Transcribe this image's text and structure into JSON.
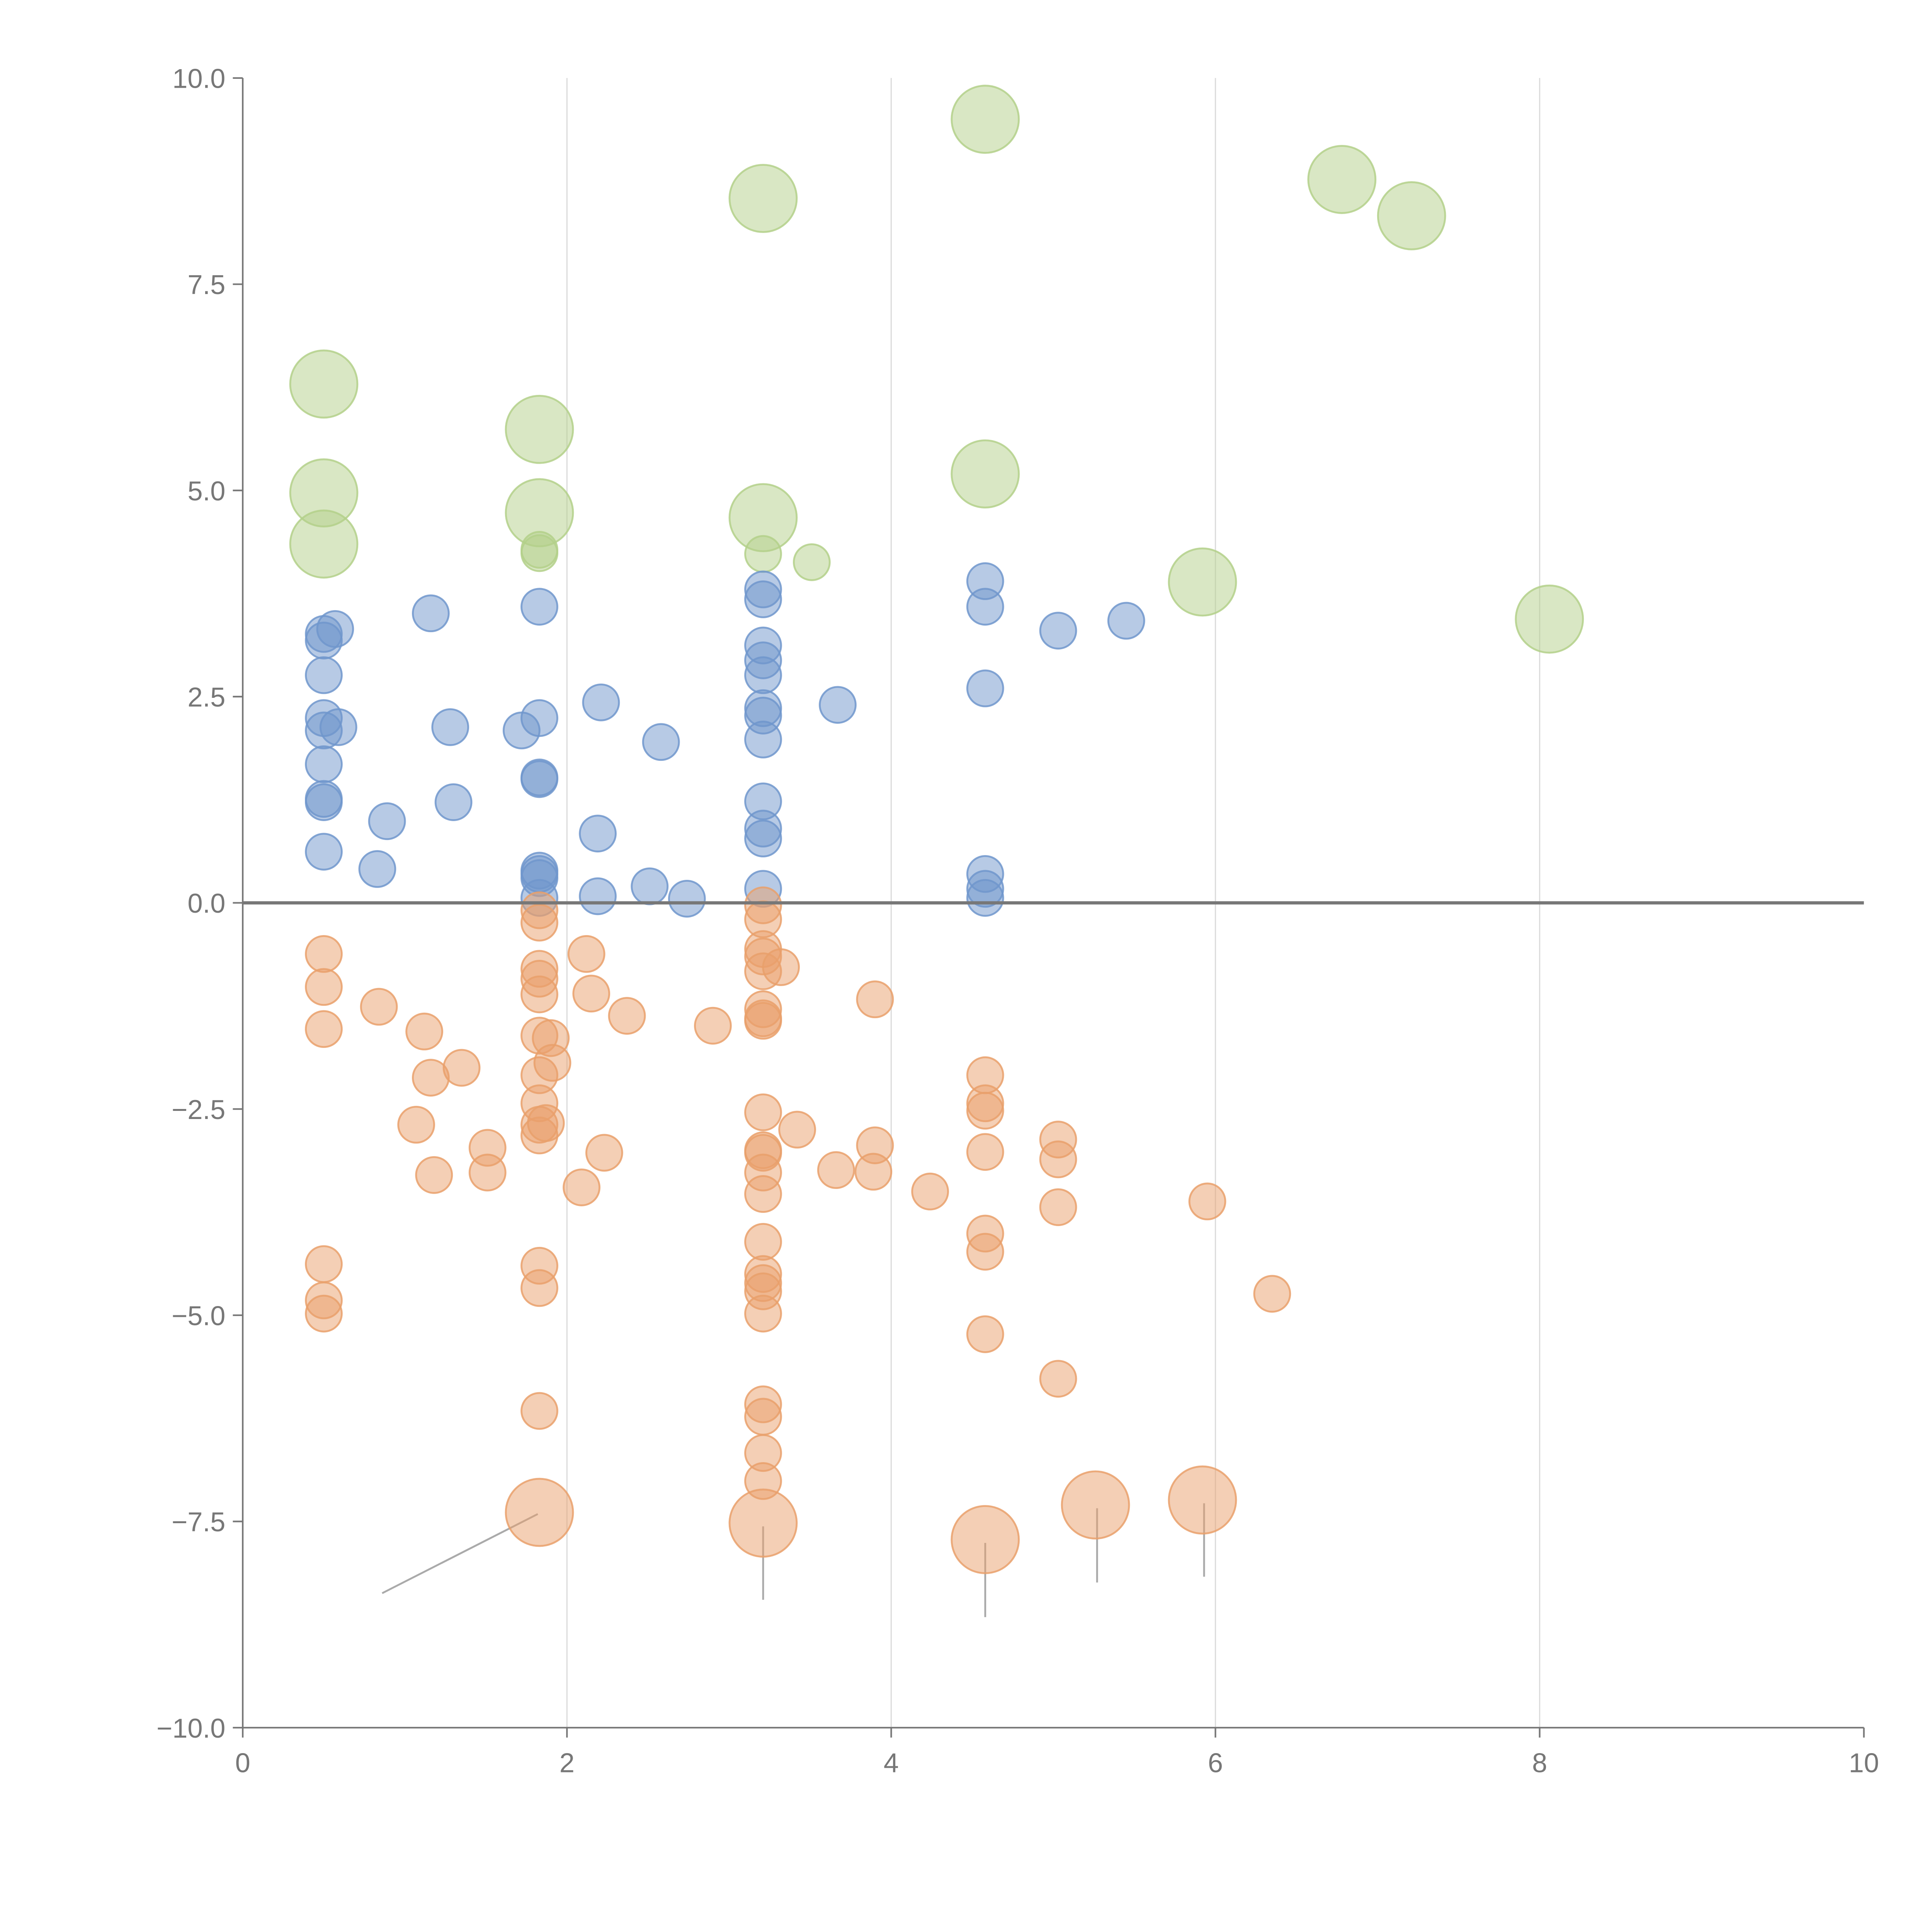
{
  "chart_data": {
    "type": "scatter",
    "title": "",
    "xlabel": "",
    "ylabel": "",
    "xlim": [
      0,
      10
    ],
    "ylim": [
      -10,
      10
    ],
    "grid": "vertical",
    "x_ticks": [
      "0",
      "2",
      "4",
      "6",
      "8",
      "10"
    ],
    "x_tick_values": [
      0,
      2,
      4,
      6,
      8,
      10
    ],
    "y_ticks": [
      "10.0",
      "7.5",
      "5.0",
      "2.5",
      "0.0",
      "−2.5",
      "−5.0",
      "−7.5",
      "−10.0"
    ],
    "y_tick_values": [
      10,
      7.5,
      5,
      2.5,
      0,
      -2.5,
      -5,
      -7.5,
      -10
    ],
    "reference_line_y": 0,
    "series": [
      {
        "name": "green",
        "color": "#b3d08a",
        "points": [
          [
            0.5,
            6.29,
            3.5
          ],
          [
            0.5,
            4.97,
            3.5
          ],
          [
            0.5,
            4.35,
            3.5
          ],
          [
            1.83,
            5.74,
            3.5
          ],
          [
            1.83,
            4.73,
            3.5
          ],
          [
            3.21,
            8.54,
            3.5
          ],
          [
            3.21,
            4.67,
            3.5
          ],
          [
            4.58,
            9.5,
            3.5
          ],
          [
            4.58,
            5.2,
            3.5
          ],
          [
            6.78,
            8.77,
            3.5
          ],
          [
            7.21,
            8.33,
            3.5
          ],
          [
            5.92,
            3.89,
            3.5
          ],
          [
            8.06,
            3.44,
            3.5
          ],
          [
            1.83,
            4.28,
            1
          ],
          [
            1.83,
            4.24,
            1
          ],
          [
            3.21,
            4.23,
            1
          ],
          [
            3.51,
            4.13,
            1
          ]
        ]
      },
      {
        "name": "blue",
        "color": "#7096cc",
        "points": [
          [
            0.5,
            3.26,
            1
          ],
          [
            0.5,
            3.18,
            1
          ],
          [
            0.5,
            2.76,
            1
          ],
          [
            0.5,
            2.24,
            1
          ],
          [
            0.5,
            2.09,
            1
          ],
          [
            0.5,
            1.68,
            1
          ],
          [
            0.5,
            1.26,
            1
          ],
          [
            0.5,
            1.22,
            1
          ],
          [
            0.5,
            0.62,
            1
          ],
          [
            0.57,
            3.32,
            1
          ],
          [
            0.59,
            2.13,
            1
          ],
          [
            1.16,
            3.51,
            1
          ],
          [
            1.28,
            2.13,
            1
          ],
          [
            1.3,
            1.22,
            1
          ],
          [
            0.89,
            0.99,
            1
          ],
          [
            0.83,
            0.41,
            1
          ],
          [
            1.83,
            3.59,
            1
          ],
          [
            1.83,
            2.24,
            1
          ],
          [
            1.83,
            1.52,
            1
          ],
          [
            1.83,
            1.5,
            1
          ],
          [
            1.83,
            0.39,
            1
          ],
          [
            1.83,
            0.35,
            1
          ],
          [
            1.83,
            0.3,
            1
          ],
          [
            1.83,
            0.06,
            1
          ],
          [
            1.72,
            2.09,
            1
          ],
          [
            2.21,
            2.43,
            1
          ],
          [
            2.19,
            0.84,
            1
          ],
          [
            2.19,
            0.08,
            1
          ],
          [
            2.58,
            1.95,
            1
          ],
          [
            2.51,
            0.2,
            1
          ],
          [
            2.74,
            0.05,
            1
          ],
          [
            3.21,
            3.8,
            1
          ],
          [
            3.21,
            3.68,
            1
          ],
          [
            3.21,
            3.12,
            1
          ],
          [
            3.21,
            2.94,
            1
          ],
          [
            3.21,
            2.76,
            1
          ],
          [
            3.21,
            2.36,
            1
          ],
          [
            3.21,
            2.27,
            1
          ],
          [
            3.21,
            1.98,
            1
          ],
          [
            3.21,
            1.23,
            1
          ],
          [
            3.21,
            0.9,
            1
          ],
          [
            3.21,
            0.78,
            1
          ],
          [
            3.21,
            0.17,
            1
          ],
          [
            3.67,
            2.4,
            1
          ],
          [
            4.58,
            3.9,
            1
          ],
          [
            4.58,
            3.59,
            1
          ],
          [
            4.58,
            2.6,
            1
          ],
          [
            4.58,
            0.35,
            1
          ],
          [
            4.58,
            0.17,
            1
          ],
          [
            4.58,
            0.06,
            1
          ],
          [
            5.03,
            3.3,
            1
          ],
          [
            5.45,
            3.42,
            1
          ]
        ]
      },
      {
        "name": "orange",
        "color": "#e9a06b",
        "points": [
          [
            0.5,
            -0.62,
            1
          ],
          [
            0.5,
            -1.02,
            1
          ],
          [
            0.5,
            -1.53,
            1
          ],
          [
            0.5,
            -4.38,
            1
          ],
          [
            0.5,
            -4.82,
            1
          ],
          [
            0.5,
            -4.98,
            1
          ],
          [
            0.84,
            -1.26,
            1
          ],
          [
            1.12,
            -1.56,
            1
          ],
          [
            1.16,
            -2.12,
            1
          ],
          [
            1.35,
            -2.0,
            1
          ],
          [
            1.07,
            -2.69,
            1
          ],
          [
            1.18,
            -3.3,
            1
          ],
          [
            1.51,
            -2.97,
            1
          ],
          [
            1.51,
            -3.27,
            1
          ],
          [
            1.83,
            -0.09,
            1
          ],
          [
            1.83,
            -0.24,
            1
          ],
          [
            1.83,
            -0.8,
            1
          ],
          [
            1.83,
            -0.92,
            1
          ],
          [
            1.83,
            -1.11,
            1
          ],
          [
            1.83,
            -1.61,
            1
          ],
          [
            1.83,
            -2.09,
            1
          ],
          [
            1.83,
            -2.43,
            1
          ],
          [
            1.83,
            -2.69,
            1
          ],
          [
            1.83,
            -2.82,
            1
          ],
          [
            1.83,
            -4.4,
            1
          ],
          [
            1.83,
            -4.67,
            1
          ],
          [
            1.83,
            -6.16,
            1
          ],
          [
            1.9,
            -1.64,
            1
          ],
          [
            1.91,
            -1.94,
            1
          ],
          [
            1.87,
            -2.67,
            1
          ],
          [
            2.12,
            -0.62,
            1
          ],
          [
            2.15,
            -1.1,
            1
          ],
          [
            2.37,
            -1.37,
            1
          ],
          [
            2.23,
            -3.03,
            1
          ],
          [
            2.09,
            -3.45,
            1
          ],
          [
            2.9,
            -1.49,
            1
          ],
          [
            3.21,
            -0.03,
            1
          ],
          [
            3.21,
            -0.2,
            1
          ],
          [
            3.21,
            -0.56,
            1
          ],
          [
            3.21,
            -0.65,
            1
          ],
          [
            3.21,
            -0.83,
            1
          ],
          [
            3.21,
            -1.29,
            1
          ],
          [
            3.21,
            -1.4,
            1
          ],
          [
            3.21,
            -1.43,
            1
          ],
          [
            3.21,
            -2.54,
            1
          ],
          [
            3.21,
            -3.0,
            1
          ],
          [
            3.21,
            -3.03,
            1
          ],
          [
            3.21,
            -3.27,
            1
          ],
          [
            3.21,
            -3.53,
            1
          ],
          [
            3.21,
            -4.11,
            1
          ],
          [
            3.21,
            -4.5,
            1
          ],
          [
            3.21,
            -4.61,
            1
          ],
          [
            3.21,
            -4.71,
            1
          ],
          [
            3.21,
            -4.98,
            1
          ],
          [
            3.21,
            -6.08,
            1
          ],
          [
            3.21,
            -6.23,
            1
          ],
          [
            3.21,
            -6.67,
            1
          ],
          [
            3.21,
            -7.01,
            1
          ],
          [
            3.32,
            -0.78,
            1
          ],
          [
            3.42,
            -2.75,
            1
          ],
          [
            3.66,
            -3.24,
            1
          ],
          [
            3.9,
            -1.17,
            1
          ],
          [
            3.9,
            -2.94,
            1
          ],
          [
            3.89,
            -3.26,
            1
          ],
          [
            4.24,
            -3.5,
            1
          ],
          [
            4.58,
            -2.09,
            1
          ],
          [
            4.58,
            -2.43,
            1
          ],
          [
            4.58,
            -2.52,
            1
          ],
          [
            4.58,
            -3.02,
            1
          ],
          [
            4.58,
            -4.01,
            1
          ],
          [
            4.58,
            -4.23,
            1
          ],
          [
            4.58,
            -5.23,
            1
          ],
          [
            5.03,
            -2.87,
            1
          ],
          [
            5.03,
            -3.11,
            1
          ],
          [
            5.03,
            -3.69,
            1
          ],
          [
            5.03,
            -5.77,
            1
          ],
          [
            5.95,
            -3.62,
            1
          ],
          [
            6.35,
            -4.74,
            1
          ],
          [
            1.83,
            -7.39,
            3.5
          ],
          [
            3.21,
            -7.52,
            3.5
          ],
          [
            4.58,
            -7.72,
            3.5
          ],
          [
            5.26,
            -7.3,
            3.5
          ],
          [
            5.92,
            -7.24,
            3.5
          ]
        ]
      }
    ],
    "leader_lines": [
      [
        [
          1.82,
          -7.41
        ],
        [
          0.86,
          -8.37
        ]
      ],
      [
        [
          3.21,
          -7.56
        ],
        [
          3.21,
          -8.45
        ]
      ],
      [
        [
          4.58,
          -7.76
        ],
        [
          4.58,
          -8.66
        ]
      ],
      [
        [
          5.27,
          -7.34
        ],
        [
          5.27,
          -8.24
        ]
      ],
      [
        [
          5.93,
          -7.28
        ],
        [
          5.93,
          -8.17
        ]
      ]
    ]
  }
}
